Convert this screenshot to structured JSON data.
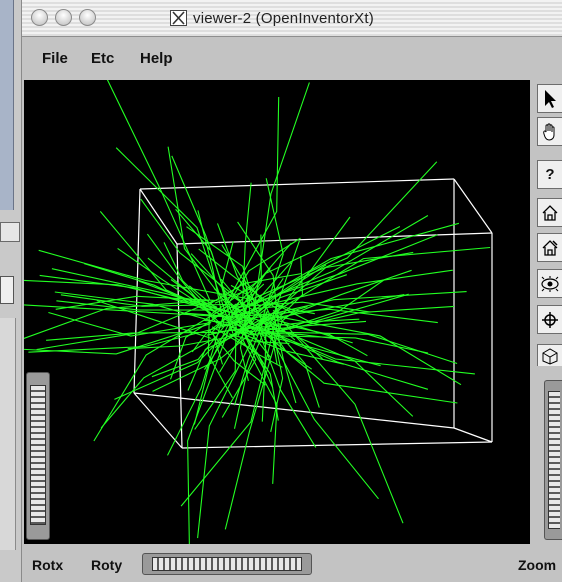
{
  "window": {
    "title": "viewer-2 (OpenInventorXt)",
    "title_icon": "x11-icon"
  },
  "menubar": {
    "items": [
      {
        "label": "File"
      },
      {
        "label": "Etc"
      },
      {
        "label": "Help"
      }
    ]
  },
  "viewer": {
    "background_color": "#000000",
    "track_color": "#22ff22",
    "detector_box_color": "#ffffff"
  },
  "toolbar": {
    "buttons": [
      {
        "icon": "select-arrow-icon"
      },
      {
        "icon": "hand-view-icon"
      },
      {
        "icon": "seek-question-icon",
        "label": "?"
      },
      {
        "icon": "home-icon"
      },
      {
        "icon": "set-home-icon"
      },
      {
        "icon": "view-all-icon"
      },
      {
        "icon": "seek-target-icon"
      },
      {
        "icon": "projection-icon"
      }
    ]
  },
  "bottom": {
    "rotx_label": "Rotx",
    "roty_label": "Roty",
    "zoom_label": "Zoom"
  }
}
